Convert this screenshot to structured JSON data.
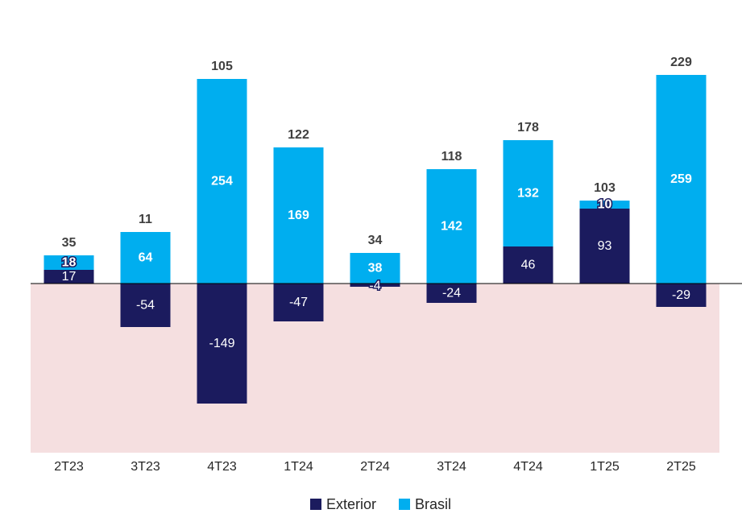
{
  "chart_data": {
    "type": "bar",
    "stacked": true,
    "categories": [
      "2T23",
      "3T23",
      "4T23",
      "1T24",
      "2T24",
      "3T24",
      "4T24",
      "1T25",
      "2T25"
    ],
    "series": [
      {
        "name": "Exterior",
        "values": [
          17,
          -54,
          -149,
          -47,
          -4,
          -24,
          46,
          93,
          -29
        ],
        "color": "#1b1b5e"
      },
      {
        "name": "Brasil",
        "values": [
          18,
          64,
          254,
          169,
          38,
          142,
          132,
          10,
          259
        ],
        "color": "#00aeef"
      }
    ],
    "totals": [
      35,
      11,
      105,
      122,
      34,
      118,
      178,
      103,
      229
    ],
    "ylim": [
      -210,
      280
    ],
    "negative_region_color": "#f5dfe0",
    "legend": {
      "position": "bottom",
      "entries": [
        "Exterior",
        "Brasil"
      ]
    }
  }
}
